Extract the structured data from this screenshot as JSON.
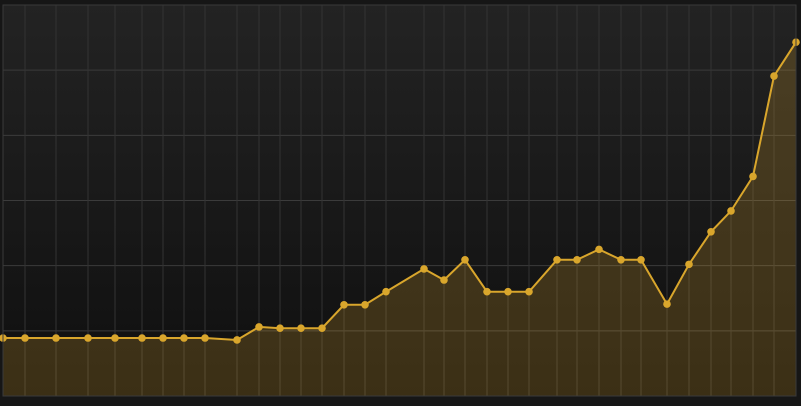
{
  "chart_data": {
    "type": "area",
    "x": [
      3,
      25,
      56,
      88,
      115,
      142,
      163,
      184,
      205,
      237,
      259,
      280,
      301,
      322,
      344,
      365,
      386,
      424,
      444,
      465,
      487,
      508,
      529,
      557,
      577,
      599,
      621,
      641,
      667,
      689,
      711,
      731,
      753,
      774,
      796
    ],
    "values": [
      0.89,
      0.89,
      0.89,
      0.89,
      0.89,
      0.89,
      0.89,
      0.89,
      0.89,
      0.86,
      1.06,
      1.04,
      1.04,
      1.04,
      1.4,
      1.4,
      1.6,
      1.95,
      1.78,
      2.09,
      1.6,
      1.6,
      1.6,
      2.09,
      2.09,
      2.25,
      2.09,
      2.09,
      1.41,
      2.02,
      2.52,
      2.84,
      3.37,
      4.91,
      5.43
    ],
    "color": "#d9a62c",
    "xlim": [
      3,
      796
    ],
    "ylim": [
      0,
      6
    ],
    "yticks": [
      0,
      1,
      2,
      3,
      4,
      5,
      6
    ],
    "grid": true
  }
}
